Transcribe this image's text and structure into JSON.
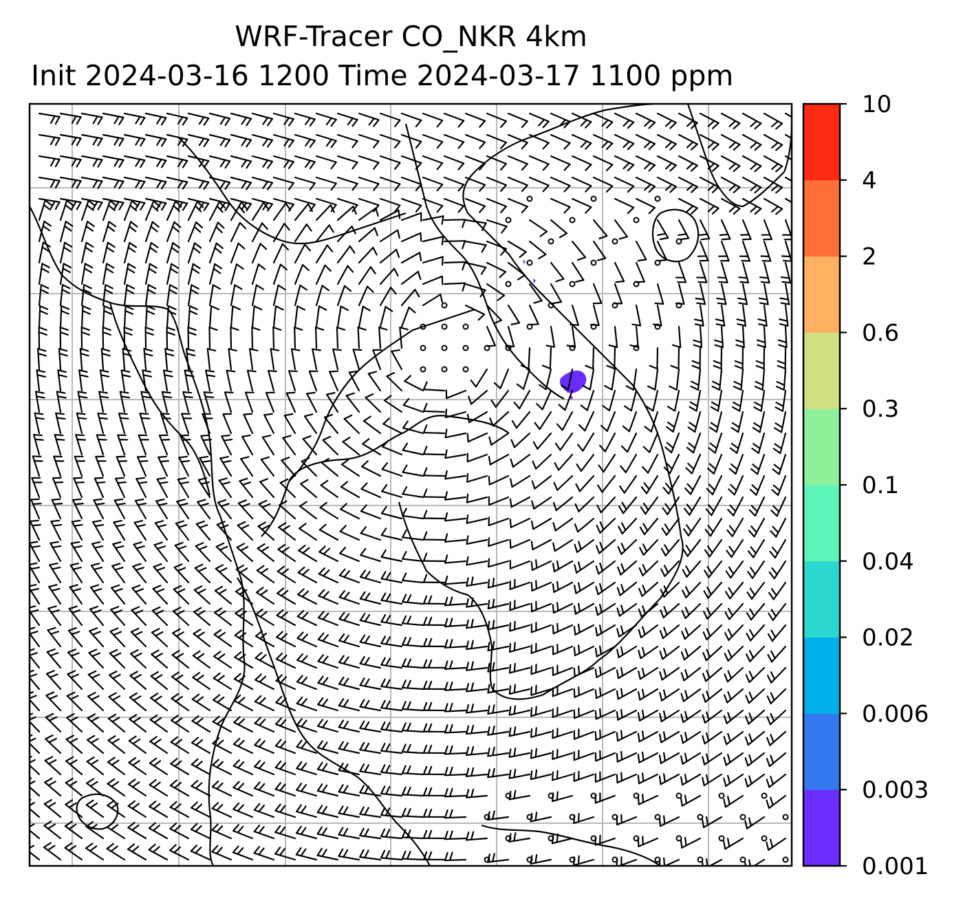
{
  "title": {
    "line1": "WRF-Tracer CO_NKR 4km",
    "line2": "Init 2024-03-16 1200 Time 2024-03-17 1100 ppm"
  },
  "colorbar": {
    "levels": [
      "0.001",
      "0.003",
      "0.006",
      "0.02",
      "0.04",
      "0.1",
      "0.3",
      "0.6",
      "2",
      "4",
      "10"
    ],
    "colors": [
      "#6a2cff",
      "#3478f0",
      "#00b0e8",
      "#2ad8d0",
      "#5cf4b8",
      "#8ef09a",
      "#d0e080",
      "#ffb060",
      "#ff7038",
      "#ff2a14"
    ]
  },
  "map": {
    "background": "#ffffff",
    "gridlines": true,
    "grid_color": "#b8b8b8",
    "coastline_color": "#000000",
    "barb_color": "#000000",
    "tracer_color": "#6a2cff",
    "wind_field": "cyclonic circulation centered over the Gulf of Thailand region"
  }
}
